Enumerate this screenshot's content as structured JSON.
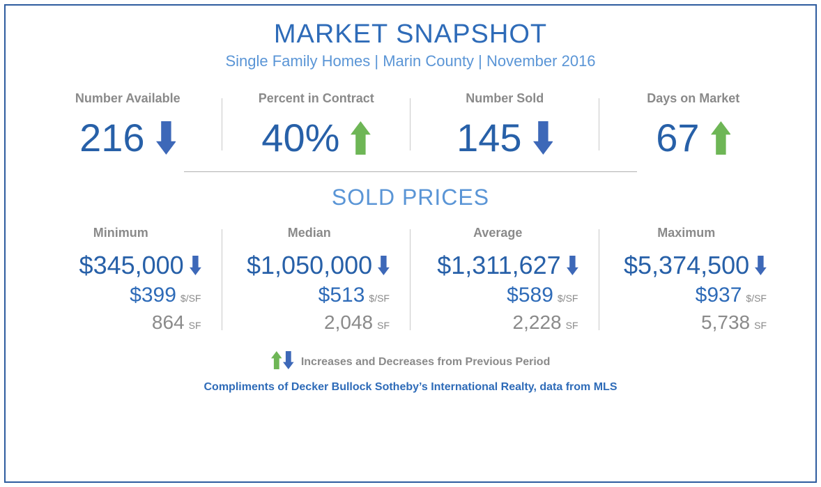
{
  "colors": {
    "title_blue": "#2e6bb8",
    "subtitle_blue": "#5a95d6",
    "label_gray": "#8a8a8a",
    "value_blue": "#2760a8",
    "arrow_up_green": "#6eb656",
    "arrow_down_blue": "#3d68b8",
    "section_blue": "#5a95d6",
    "psf_blue": "#2e6bb8",
    "sf_gray": "#8a8a8a",
    "credit_blue": "#2e6bb8",
    "border": "#2e5c9e"
  },
  "header": {
    "title": "MARKET SNAPSHOT",
    "subtitle": "Single Family Homes | Marin County | November 2016"
  },
  "top_stats": [
    {
      "label": "Number Available",
      "value": "216",
      "trend": "down"
    },
    {
      "label": "Percent in Contract",
      "value": "40%",
      "trend": "up"
    },
    {
      "label": "Number Sold",
      "value": "145",
      "trend": "down"
    },
    {
      "label": "Days on Market",
      "value": "67",
      "trend": "up"
    }
  ],
  "sold_section": {
    "title": "SOLD PRICES",
    "psf_unit": "$/SF",
    "sf_unit": "SF",
    "cells": [
      {
        "label": "Minimum",
        "price": "$345,000",
        "trend": "down",
        "psf": "$399",
        "sf": "864"
      },
      {
        "label": "Median",
        "price": "$1,050,000",
        "trend": "down",
        "psf": "$513",
        "sf": "2,048"
      },
      {
        "label": "Average",
        "price": "$1,311,627",
        "trend": "down",
        "psf": "$589",
        "sf": "2,228"
      },
      {
        "label": "Maximum",
        "price": "$5,374,500",
        "trend": "down",
        "psf": "$937",
        "sf": "5,738"
      }
    ]
  },
  "legend": {
    "text": "Increases and Decreases from Previous Period"
  },
  "credit": "Compliments of Decker Bullock Sotheby’s International Realty, data from MLS",
  "arrow_sizes": {
    "top_stat": 48,
    "price_main": 28,
    "legend": 26
  }
}
